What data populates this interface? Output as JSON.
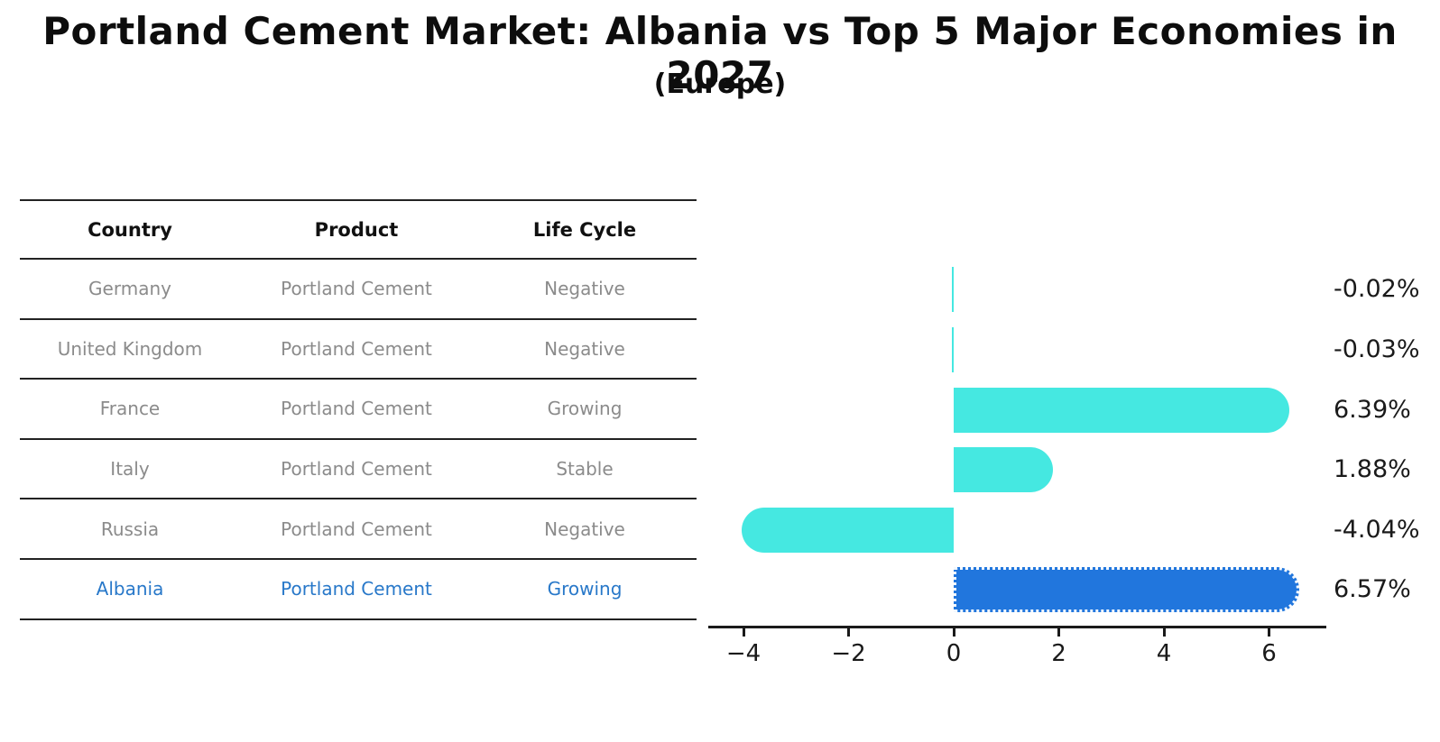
{
  "header": {
    "title": "Portland Cement Market: Albania vs Top 5 Major Economies in 2027",
    "subtitle": "(Europe)"
  },
  "table": {
    "columns": [
      "Country",
      "Product",
      "Life Cycle"
    ],
    "rows": [
      {
        "country": "Germany",
        "product": "Portland Cement",
        "life_cycle": "Negative",
        "highlight": false
      },
      {
        "country": "United Kingdom",
        "product": "Portland Cement",
        "life_cycle": "Negative",
        "highlight": false
      },
      {
        "country": "France",
        "product": "Portland Cement",
        "life_cycle": "Growing",
        "highlight": false
      },
      {
        "country": "Italy",
        "product": "Portland Cement",
        "life_cycle": "Stable",
        "highlight": false
      },
      {
        "country": "Russia",
        "product": "Portland Cement",
        "life_cycle": "Negative",
        "highlight": false
      },
      {
        "country": "Albania",
        "product": "Portland Cement",
        "life_cycle": "Growing",
        "highlight": true
      }
    ]
  },
  "chart_data": {
    "type": "bar",
    "orientation": "horizontal",
    "title": "Portland Cement Market: Albania vs Top 5 Major Economies in 2027",
    "subtitle": "(Europe)",
    "categories": [
      "Germany",
      "United Kingdom",
      "France",
      "Italy",
      "Russia",
      "Albania"
    ],
    "values": [
      -0.02,
      -0.03,
      6.39,
      1.88,
      -4.04,
      6.57
    ],
    "value_labels": [
      "-0.02%",
      "-0.03%",
      "6.39%",
      "1.88%",
      "-4.04%",
      "6.57%"
    ],
    "xlabel": "",
    "ylabel": "",
    "xlim": [
      -4.67,
      7.09
    ],
    "xticks": [
      -4,
      -2,
      0,
      2,
      4,
      6
    ],
    "xtick_labels": [
      "−4",
      "−2",
      "0",
      "2",
      "4",
      "6"
    ],
    "grid": false,
    "legend": false,
    "highlight_index": 5,
    "colors": {
      "bar": "#45e8e1",
      "highlight_bar": "#2176dd",
      "highlight_text": "#2878c9",
      "row_text": "#8b8b8b",
      "axis": "#1a1a1a"
    }
  }
}
